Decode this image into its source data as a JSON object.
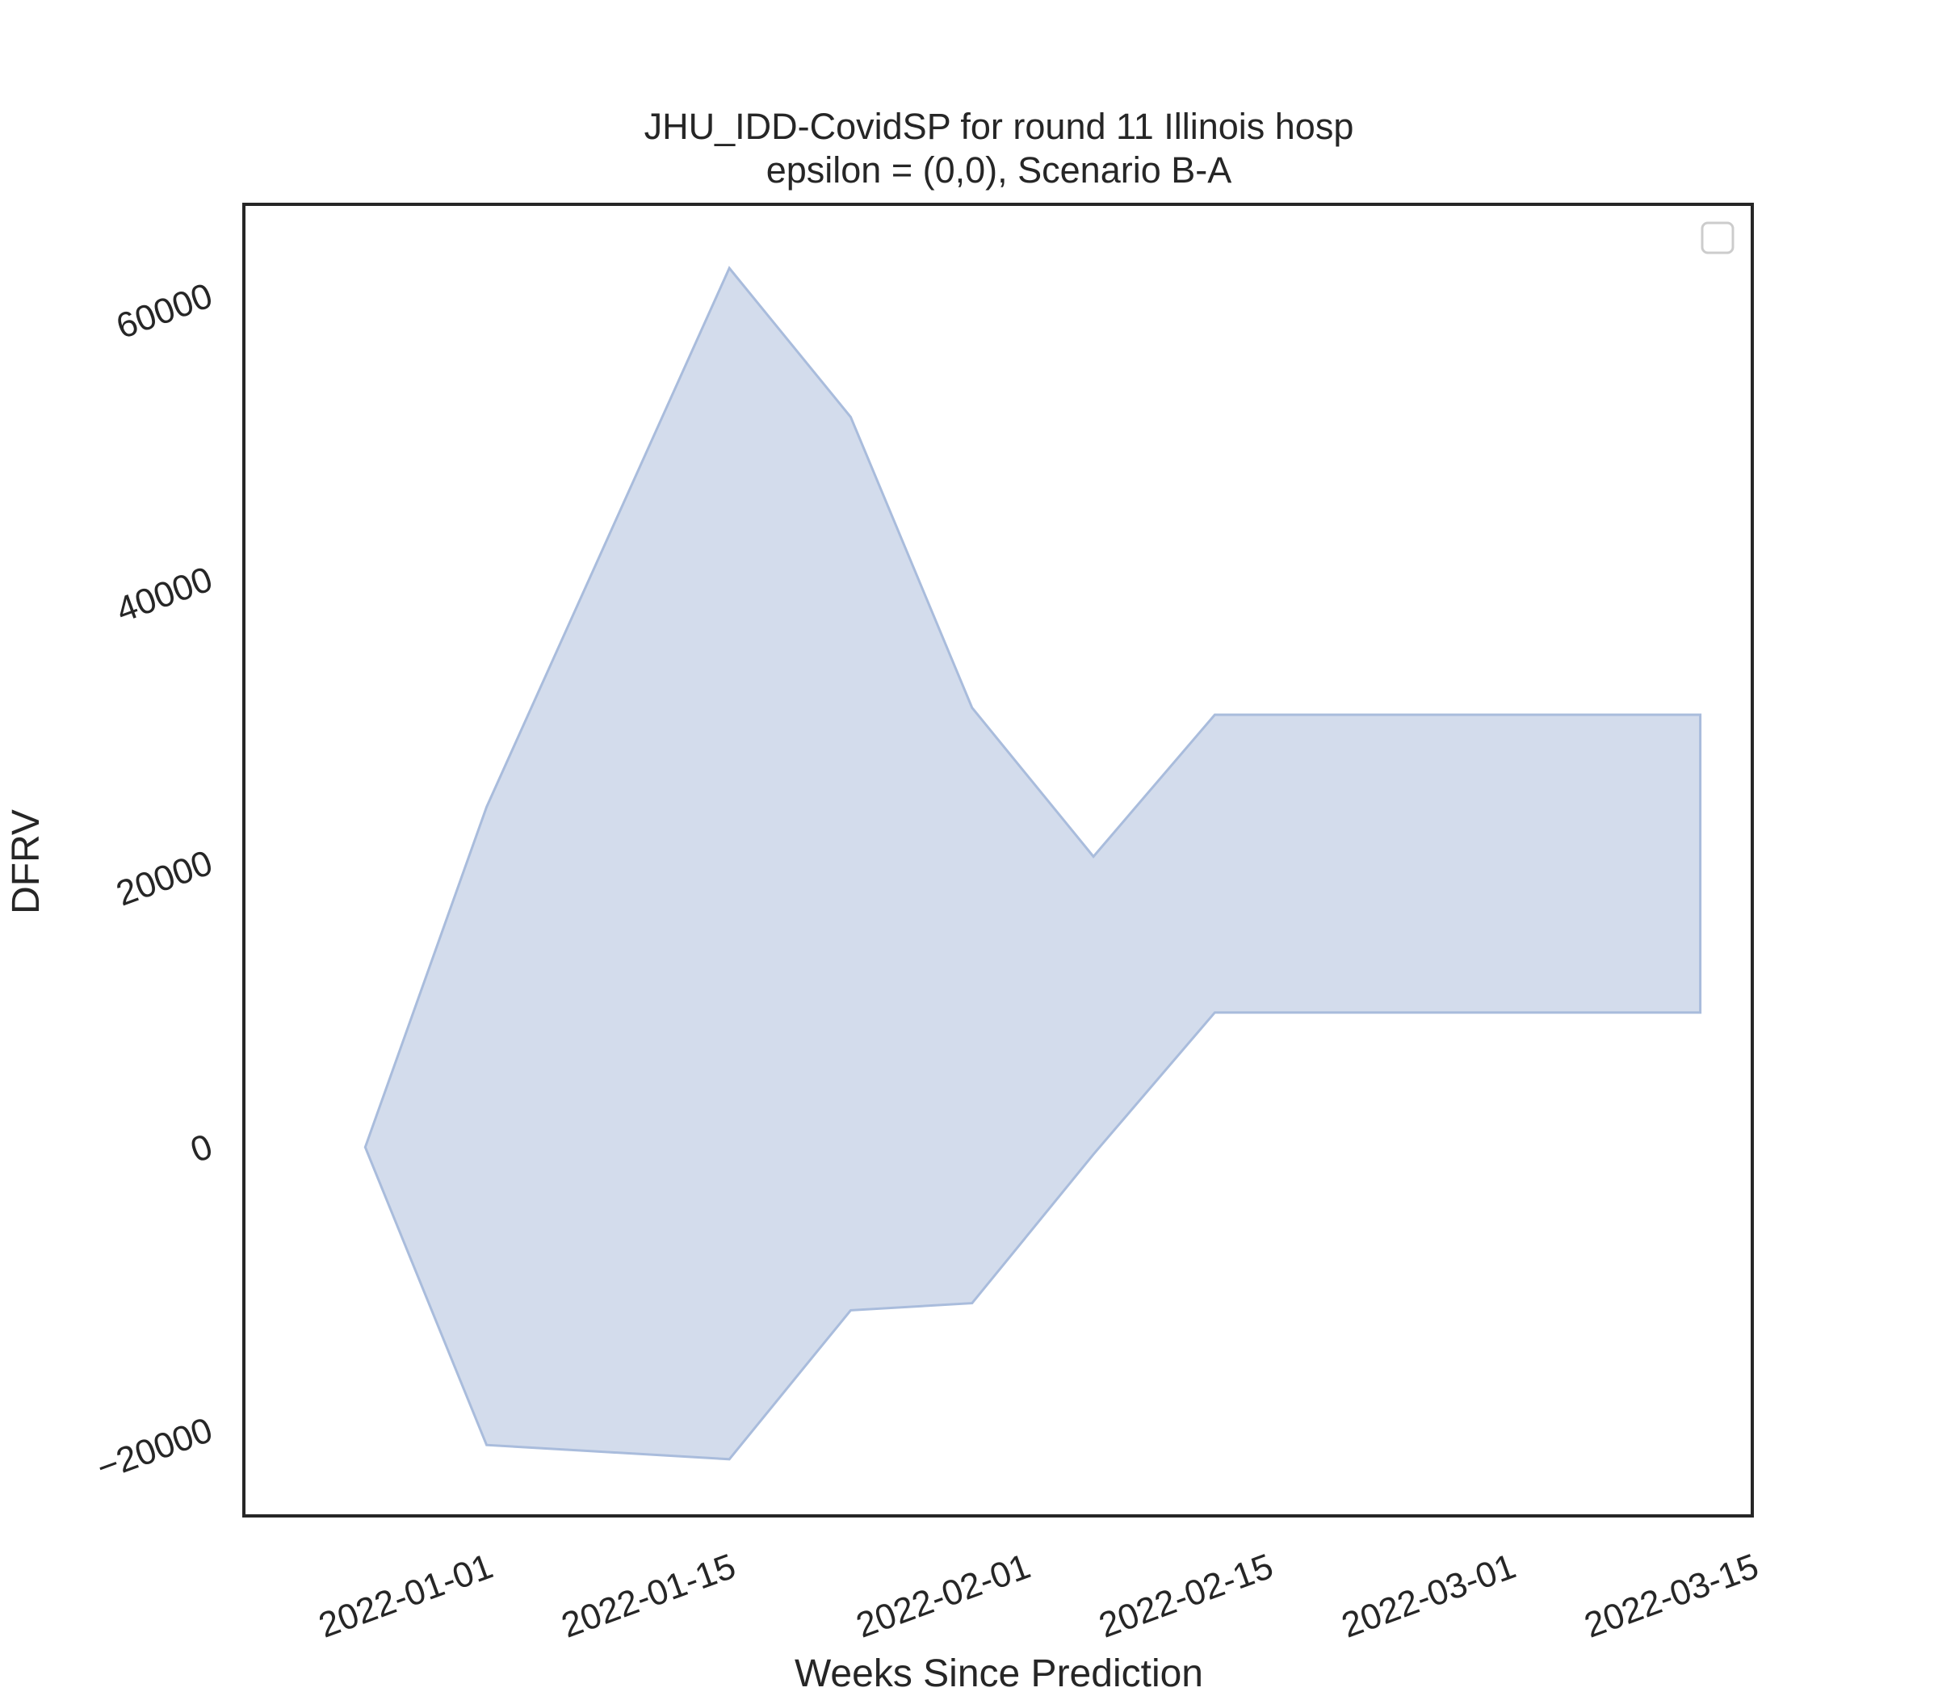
{
  "chart_data": {
    "type": "area",
    "title_line1": "JHU_IDD-CovidSP for round 11 Illinois hosp",
    "title_line2": "epsilon = (0,0), Scenario B-A",
    "xlabel": "Weeks Since Prediction",
    "ylabel": "DFRV",
    "x_ticks": [
      "2022-01-01",
      "2022-01-15",
      "2022-02-01",
      "2022-02-15",
      "2022-03-01",
      "2022-03-15"
    ],
    "y_ticks": [
      -20000,
      0,
      20000,
      40000,
      60000
    ],
    "y_tick_labels": [
      "−20000",
      "0",
      "20000",
      "40000",
      "60000"
    ],
    "xlim": [
      "2021-12-18",
      "2022-03-15"
    ],
    "ylim": [
      -26000,
      66500
    ],
    "legend": "top-right, empty",
    "grid": false,
    "fill_color": "#c2cee5",
    "edge_color": "#a9bcdc",
    "series": [
      {
        "x": [
          "2021-12-25",
          "2022-01-01",
          "2022-01-08",
          "2022-01-15",
          "2022-01-22",
          "2022-01-29",
          "2022-02-05",
          "2022-02-12",
          "2022-02-19",
          "2022-02-26",
          "2022-03-05",
          "2022-03-12"
        ],
        "upper": [
          0,
          24000,
          43000,
          62000,
          51500,
          31000,
          20500,
          30500,
          30500,
          30500,
          30500,
          30500
        ],
        "lower": [
          0,
          -21000,
          -21500,
          -22000,
          -11500,
          -11000,
          -500,
          9500,
          9500,
          9500,
          9500,
          9500
        ]
      }
    ]
  }
}
